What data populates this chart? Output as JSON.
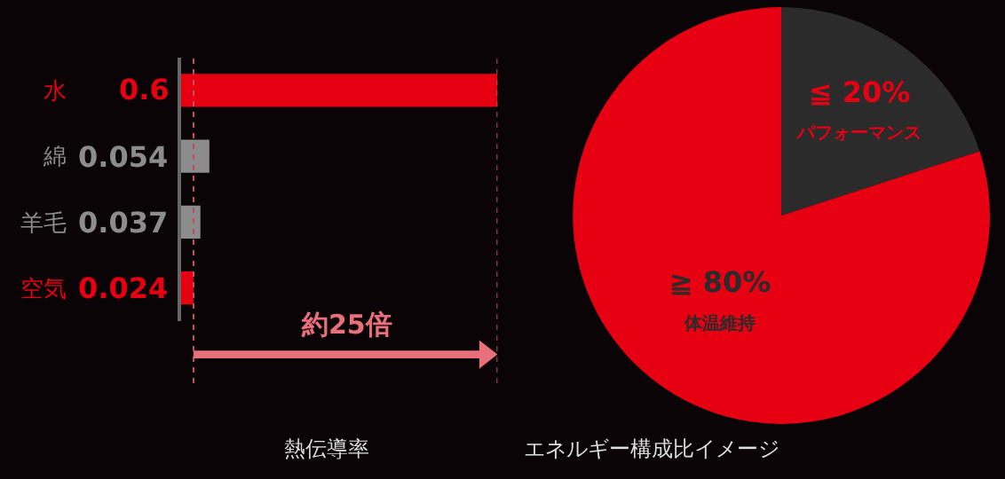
{
  "chart_data": [
    {
      "type": "bar",
      "orientation": "horizontal",
      "title": "熱伝導率",
      "categories": [
        "水",
        "綿",
        "羊毛",
        "空気"
      ],
      "values": [
        0.6,
        0.054,
        0.037,
        0.024
      ],
      "colors": [
        "#e60012",
        "#8c8c8c",
        "#8c8c8c",
        "#e60012"
      ],
      "data_labels": true,
      "grid": false,
      "legend": false,
      "ref_lines": [
        {
          "axis": "x",
          "value": 0.024,
          "color": "#c0505a",
          "line_style": "dotted"
        },
        {
          "axis": "x",
          "value": 0.6,
          "color": "#c0505a",
          "line_style": "dotted"
        }
      ],
      "annotations": [
        "約25倍"
      ]
    },
    {
      "type": "pie",
      "title": "エネルギー構成比イメージ",
      "categories": [
        "パフォーマンス",
        "体温維持"
      ],
      "values": [
        20,
        80
      ],
      "colors": [
        "#2b2b2b",
        "#e60012"
      ],
      "value_labels": [
        "≦ 20%",
        "≧ 80%"
      ],
      "legend": false
    }
  ]
}
